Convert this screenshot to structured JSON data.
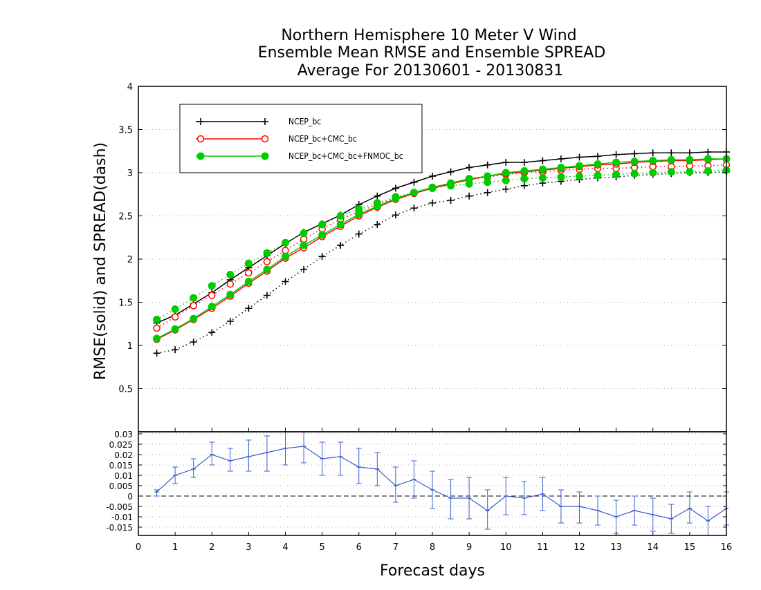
{
  "chart_data": [
    {
      "type": "line",
      "title": [
        "Northern Hemisphere 10 Meter V Wind",
        "Ensemble Mean RMSE and Ensemble SPREAD",
        "Average For 20130601 - 20130831"
      ],
      "xlabel": "Forecast days",
      "ylabel": "RMSE(solid) and SPREAD(dash)",
      "xlim": [
        0,
        16
      ],
      "ylim": [
        0,
        4
      ],
      "x_ticks": [
        "0",
        "1",
        "2",
        "3",
        "4",
        "5",
        "6",
        "7",
        "8",
        "9",
        "10",
        "11",
        "12",
        "13",
        "14",
        "15",
        "16"
      ],
      "y_ticks": [
        "0.5",
        "1",
        "1.5",
        "2",
        "2.5",
        "3",
        "3.5",
        "4"
      ],
      "y_gridlines": true,
      "legend_position": "top-left",
      "x": [
        0.5,
        1,
        1.5,
        2,
        2.5,
        3,
        3.5,
        4,
        4.5,
        5,
        5.5,
        6,
        6.5,
        7,
        7.5,
        8,
        8.5,
        9,
        9.5,
        10,
        10.5,
        11,
        11.5,
        12,
        12.5,
        13,
        13.5,
        14,
        14.5,
        15,
        15.5,
        16
      ],
      "series": [
        {
          "name": "NCEP_bc",
          "color": "#000000",
          "marker": "plus",
          "rmse": [
            1.26,
            1.35,
            1.48,
            1.61,
            1.76,
            1.9,
            2.04,
            2.18,
            2.31,
            2.41,
            2.51,
            2.63,
            2.73,
            2.82,
            2.89,
            2.96,
            3.01,
            3.06,
            3.09,
            3.12,
            3.12,
            3.14,
            3.16,
            3.18,
            3.19,
            3.21,
            3.22,
            3.23,
            3.23,
            3.23,
            3.24,
            3.24
          ],
          "spread": [
            0.91,
            0.95,
            1.04,
            1.15,
            1.28,
            1.43,
            1.58,
            1.74,
            1.88,
            2.03,
            2.16,
            2.29,
            2.4,
            2.51,
            2.59,
            2.65,
            2.68,
            2.73,
            2.77,
            2.81,
            2.85,
            2.88,
            2.9,
            2.92,
            2.94,
            2.95,
            2.97,
            2.98,
            2.99,
            3.0,
            3.0,
            3.01
          ]
        },
        {
          "name": "NCEP_bc+CMC_bc",
          "color": "#ff0000",
          "marker": "open-circle",
          "rmse": [
            1.07,
            1.18,
            1.3,
            1.43,
            1.57,
            1.72,
            1.86,
            2.01,
            2.13,
            2.26,
            2.38,
            2.5,
            2.6,
            2.69,
            2.76,
            2.82,
            2.87,
            2.92,
            2.96,
            2.99,
            3.01,
            3.03,
            3.05,
            3.07,
            3.09,
            3.1,
            3.12,
            3.13,
            3.14,
            3.14,
            3.15,
            3.16
          ],
          "spread": [
            1.2,
            1.33,
            1.46,
            1.58,
            1.71,
            1.84,
            1.97,
            2.1,
            2.23,
            2.35,
            2.46,
            2.55,
            2.63,
            2.71,
            2.77,
            2.83,
            2.88,
            2.92,
            2.95,
            2.98,
            3.0,
            3.01,
            3.03,
            3.04,
            3.05,
            3.05,
            3.06,
            3.07,
            3.07,
            3.08,
            3.08,
            3.09
          ]
        },
        {
          "name": "NCEP_bc+CMC_bc+FNMOC_bc",
          "color": "#00cc00",
          "marker": "filled-circle",
          "rmse": [
            1.08,
            1.19,
            1.31,
            1.45,
            1.59,
            1.74,
            1.88,
            2.03,
            2.16,
            2.28,
            2.4,
            2.52,
            2.61,
            2.7,
            2.77,
            2.83,
            2.88,
            2.93,
            2.96,
            3.0,
            3.02,
            3.04,
            3.06,
            3.08,
            3.1,
            3.12,
            3.13,
            3.14,
            3.15,
            3.15,
            3.16,
            3.16
          ],
          "spread": [
            1.3,
            1.42,
            1.55,
            1.69,
            1.82,
            1.95,
            2.07,
            2.19,
            2.3,
            2.4,
            2.5,
            2.58,
            2.65,
            2.72,
            2.77,
            2.82,
            2.85,
            2.87,
            2.89,
            2.91,
            2.93,
            2.94,
            2.95,
            2.96,
            2.97,
            2.98,
            2.99,
            3.0,
            3.01,
            3.01,
            3.02,
            3.03
          ]
        }
      ]
    },
    {
      "type": "line",
      "xlim": [
        0,
        16
      ],
      "ylim": [
        -0.019,
        0.031
      ],
      "y_ticks": [
        "0.03",
        "0.025",
        "0.02",
        "0.015",
        "0.01",
        "0.005",
        "0",
        "-0.005",
        "-0.01",
        "-0.015"
      ],
      "y_gridlines": true,
      "zero_line": "dashed",
      "series": [
        {
          "color": "#3a5fcd",
          "marker": "tick",
          "x": [
            0.5,
            1,
            1.5,
            2,
            2.5,
            3,
            3.5,
            4,
            4.5,
            5,
            5.5,
            6,
            6.5,
            7,
            7.5,
            8,
            8.5,
            9,
            9.5,
            10,
            10.5,
            11,
            11.5,
            12,
            12.5,
            13,
            13.5,
            14,
            14.5,
            15,
            15.5,
            16
          ],
          "values": [
            0.002,
            0.01,
            0.013,
            0.02,
            0.017,
            0.019,
            0.021,
            0.023,
            0.024,
            0.018,
            0.019,
            0.014,
            0.013,
            0.005,
            0.008,
            0.003,
            -0.001,
            -0.001,
            -0.007,
            0.0,
            -0.001,
            0.001,
            -0.005,
            -0.005,
            -0.007,
            -0.01,
            -0.007,
            -0.009,
            -0.011,
            -0.006,
            -0.012,
            -0.006
          ],
          "error_upper": [
            0.003,
            0.014,
            0.018,
            0.026,
            0.023,
            0.027,
            0.029,
            0.031,
            0.031,
            0.026,
            0.026,
            0.023,
            0.021,
            0.014,
            0.017,
            0.012,
            0.008,
            0.009,
            0.003,
            0.009,
            0.007,
            0.009,
            0.003,
            0.002,
            0.0,
            -0.002,
            0.0,
            -0.001,
            -0.004,
            0.002,
            -0.005,
            0.002
          ],
          "error_lower": [
            0.0,
            0.006,
            0.009,
            0.015,
            0.012,
            0.012,
            0.012,
            0.015,
            0.016,
            0.01,
            0.01,
            0.006,
            0.005,
            -0.003,
            -0.001,
            -0.006,
            -0.011,
            -0.011,
            -0.016,
            -0.009,
            -0.009,
            -0.007,
            -0.013,
            -0.013,
            -0.014,
            -0.018,
            -0.014,
            -0.017,
            -0.018,
            -0.013,
            -0.019,
            -0.014
          ]
        }
      ]
    }
  ]
}
